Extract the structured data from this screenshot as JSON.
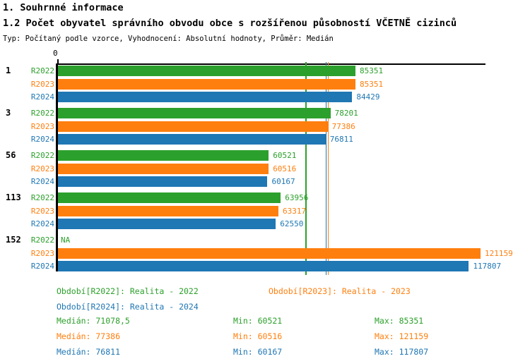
{
  "header": {
    "title": "1. Souhrnné informace",
    "subtitle": "1.2 Počet obyvatel správního obvodu obce s rozšířenou působností VČETNĚ cizinců",
    "meta": "Typ: Počítaný podle vzorce, Vyhodnocení: Absolutní hodnoty, Průměr: Medián"
  },
  "colors": {
    "r2022": "#2CA02C",
    "r2023": "#FF7F0E",
    "r2024": "#1F77B4",
    "axis": "#000000"
  },
  "chart_data": {
    "type": "bar",
    "orientation": "horizontal",
    "axis_origin_label": "0",
    "xlim": [
      0,
      122570
    ],
    "grid": false,
    "categories": [
      "1",
      "3",
      "56",
      "113",
      "152"
    ],
    "series": [
      {
        "name": "R2022",
        "color_key": "r2022",
        "values": [
          85351,
          78201,
          60521,
          63956,
          null
        ]
      },
      {
        "name": "R2023",
        "color_key": "r2023",
        "values": [
          85351,
          77386,
          60516,
          63317,
          121159
        ]
      },
      {
        "name": "R2024",
        "color_key": "r2024",
        "values": [
          84429,
          76811,
          60167,
          62550,
          117807
        ]
      }
    ],
    "na_label": "NA",
    "median_lines": [
      {
        "series": "R2022",
        "color_key": "r2022",
        "value": 71078.5
      },
      {
        "series": "R2024",
        "color_key": "r2024",
        "value": 76811
      },
      {
        "series": "R2023",
        "color_key": "r2023",
        "value": 77386
      }
    ]
  },
  "legend": {
    "items": [
      {
        "label": "Období[R2022]: Realita - 2022",
        "color_key": "r2022"
      },
      {
        "label": "Období[R2023]: Realita - 2023",
        "color_key": "r2023"
      },
      {
        "label": "Období[R2024]: Realita - 2024",
        "color_key": "r2024"
      }
    ]
  },
  "stats": {
    "rows": [
      {
        "color_key": "r2022",
        "median": "Medián: 71078,5",
        "min": "Min: 60521",
        "max": "Max: 85351"
      },
      {
        "color_key": "r2023",
        "median": "Medián: 77386",
        "min": "Min: 60516",
        "max": "Max: 121159"
      },
      {
        "color_key": "r2024",
        "median": "Medián: 76811",
        "min": "Min: 60167",
        "max": "Max: 117807"
      }
    ]
  }
}
